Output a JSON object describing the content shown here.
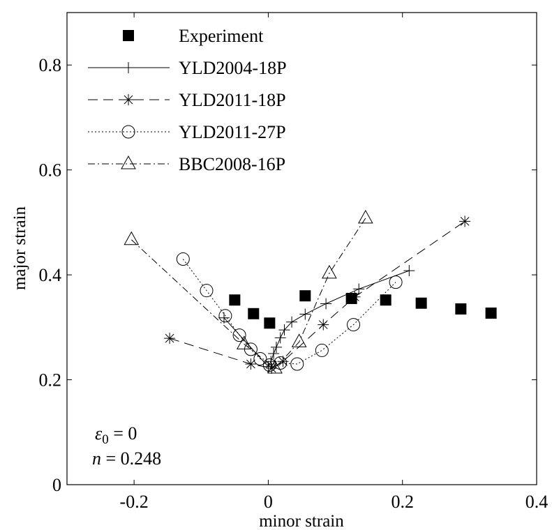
{
  "chart_data": {
    "type": "line",
    "title": "",
    "xlabel": "minor strain",
    "ylabel": "major strain",
    "xlim": [
      -0.3,
      0.4
    ],
    "ylim": [
      0,
      0.9
    ],
    "x_ticks": [
      -0.2,
      0,
      0.2,
      0.4
    ],
    "x_tick_labels": [
      "-0.2",
      "0",
      "0.2",
      "0.4"
    ],
    "y_ticks": [
      0,
      0.2,
      0.4,
      0.6,
      0.8
    ],
    "y_tick_labels": [
      "0",
      "0.2",
      "0.4",
      "0.6",
      "0.8"
    ],
    "grid": false,
    "legend_position": "top-right",
    "annotations": {
      "line1_symbol": "ε",
      "line1_sub": "0",
      "line1_rest": " = 0",
      "line2_symbol": "n",
      "line2_rest": " = 0.248"
    },
    "series": [
      {
        "name": "Experiment",
        "style": "markers-only",
        "marker": "filled-square",
        "points": [
          [
            -0.05,
            0.352
          ],
          [
            -0.022,
            0.326
          ],
          [
            0.002,
            0.308
          ],
          [
            0.055,
            0.36
          ],
          [
            0.124,
            0.355
          ],
          [
            0.175,
            0.352
          ],
          [
            0.228,
            0.346
          ],
          [
            0.287,
            0.335
          ],
          [
            0.332,
            0.327
          ]
        ]
      },
      {
        "name": "YLD2004-18P",
        "style": "solid",
        "marker": "plus",
        "points": [
          [
            -0.066,
            0.318
          ],
          [
            0.0,
            0.225
          ],
          [
            0.004,
            0.235
          ],
          [
            0.008,
            0.25
          ],
          [
            0.012,
            0.262
          ],
          [
            0.018,
            0.28
          ],
          [
            0.024,
            0.295
          ],
          [
            0.035,
            0.31
          ],
          [
            0.055,
            0.325
          ],
          [
            0.086,
            0.345
          ],
          [
            0.135,
            0.373
          ],
          [
            0.21,
            0.408
          ]
        ]
      },
      {
        "name": "YLD2011-18P",
        "style": "dashed",
        "marker": "asterisk",
        "points": [
          [
            -0.147,
            0.279
          ],
          [
            -0.026,
            0.23
          ],
          [
            0.005,
            0.222
          ],
          [
            0.022,
            0.235
          ],
          [
            0.082,
            0.305
          ],
          [
            0.129,
            0.358
          ],
          [
            0.293,
            0.502
          ]
        ]
      },
      {
        "name": "YLD2011-27P",
        "style": "dotted",
        "marker": "open-circle",
        "points": [
          [
            -0.127,
            0.43
          ],
          [
            -0.092,
            0.37
          ],
          [
            -0.064,
            0.322
          ],
          [
            -0.043,
            0.285
          ],
          [
            -0.026,
            0.258
          ],
          [
            -0.012,
            0.24
          ],
          [
            0.002,
            0.228
          ],
          [
            0.018,
            0.232
          ],
          [
            0.043,
            0.23
          ],
          [
            0.08,
            0.256
          ],
          [
            0.127,
            0.305
          ],
          [
            0.19,
            0.386
          ]
        ]
      },
      {
        "name": "BBC2008-16P",
        "style": "dash-dot",
        "marker": "open-triangle",
        "points": [
          [
            -0.204,
            0.467
          ],
          [
            -0.036,
            0.268
          ],
          [
            0.01,
            0.222
          ],
          [
            0.046,
            0.272
          ],
          [
            0.091,
            0.403
          ],
          [
            0.145,
            0.508
          ]
        ]
      }
    ]
  }
}
